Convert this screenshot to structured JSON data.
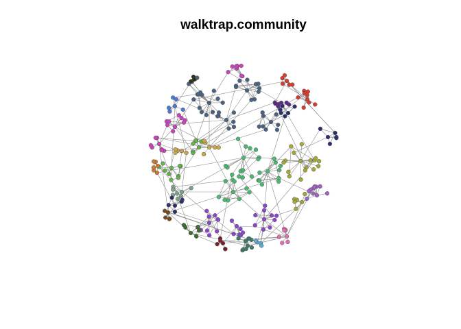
{
  "title": "walktrap.community",
  "network": {
    "layout": "fruchterman-reingold style, roughly circular cloud",
    "edge_color": "#8c8c8c",
    "node_outline": "#555555",
    "communities": [
      {
        "id": "slate",
        "color": "#4a6382"
      },
      {
        "id": "magenta",
        "color": "#cc44bb"
      },
      {
        "id": "red",
        "color": "#d43d2f"
      },
      {
        "id": "navy",
        "color": "#2a2f6e"
      },
      {
        "id": "purple",
        "color": "#5c2a8a"
      },
      {
        "id": "olive",
        "color": "#a6a83a"
      },
      {
        "id": "green",
        "color": "#4ab871"
      },
      {
        "id": "lime",
        "color": "#62b44a"
      },
      {
        "id": "orange",
        "color": "#d07a2b"
      },
      {
        "id": "tan",
        "color": "#c9a64a"
      },
      {
        "id": "violet",
        "color": "#8a46cf"
      },
      {
        "id": "lavender",
        "color": "#9d64c8"
      },
      {
        "id": "blue",
        "color": "#4d79d6"
      },
      {
        "id": "darkgreen",
        "color": "#3f6d2b"
      },
      {
        "id": "teal",
        "color": "#3e7a66"
      },
      {
        "id": "pink",
        "color": "#e36fb2"
      },
      {
        "id": "maroon",
        "color": "#7a1f2c"
      },
      {
        "id": "sky",
        "color": "#5aaad6"
      },
      {
        "id": "black",
        "color": "#2d3318"
      },
      {
        "id": "sage",
        "color": "#7fa38a"
      },
      {
        "id": "brown",
        "color": "#7a4a1f"
      }
    ]
  }
}
